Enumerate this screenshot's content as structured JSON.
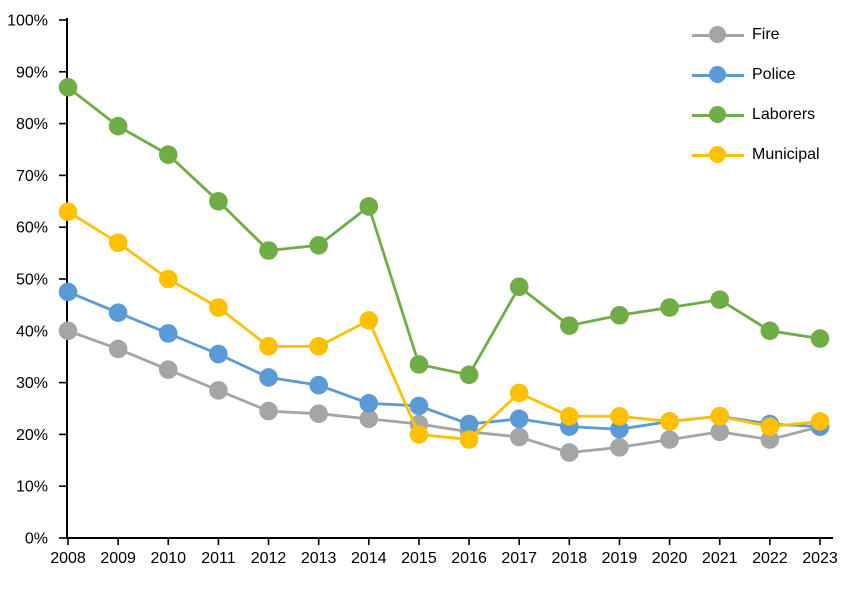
{
  "chart_data": {
    "type": "line",
    "title": "",
    "xlabel": "",
    "ylabel": "",
    "categories": [
      "2008",
      "2009",
      "2010",
      "2011",
      "2012",
      "2013",
      "2014",
      "2015",
      "2016",
      "2017",
      "2018",
      "2019",
      "2020",
      "2021",
      "2022",
      "2023"
    ],
    "series": [
      {
        "name": "Fire",
        "color": "#A5A5A5",
        "values": [
          40,
          36.5,
          32.5,
          28.5,
          24.5,
          24,
          23,
          22,
          20.5,
          19.5,
          16.5,
          17.5,
          19,
          20.5,
          19,
          21.5
        ]
      },
      {
        "name": "Police",
        "color": "#5B9BD5",
        "values": [
          47.5,
          43.5,
          39.5,
          35.5,
          31,
          29.5,
          26,
          25.5,
          22,
          23,
          21.5,
          21,
          22.5,
          23.5,
          22,
          21.5
        ]
      },
      {
        "name": "Laborers",
        "color": "#70AD47",
        "values": [
          87,
          79.5,
          74,
          65,
          55.5,
          56.5,
          64,
          33.5,
          31.5,
          48.5,
          41,
          43,
          44.5,
          46,
          40,
          38.5
        ]
      },
      {
        "name": "Municipal",
        "color": "#FFC000",
        "values": [
          63,
          57,
          50,
          44.5,
          37,
          37,
          42,
          20,
          19,
          28,
          23.5,
          23.5,
          22.5,
          23.5,
          21.5,
          22.5
        ]
      }
    ],
    "ylim": [
      0,
      100
    ],
    "ytick_step": 10,
    "ytick_labels": [
      "0%",
      "10%",
      "20%",
      "30%",
      "40%",
      "50%",
      "60%",
      "70%",
      "80%",
      "90%",
      "100%"
    ],
    "grid": false,
    "legend_position": "top-right",
    "axis_color": "#000000",
    "text_color": "#000000",
    "background": "#FFFFFF"
  }
}
